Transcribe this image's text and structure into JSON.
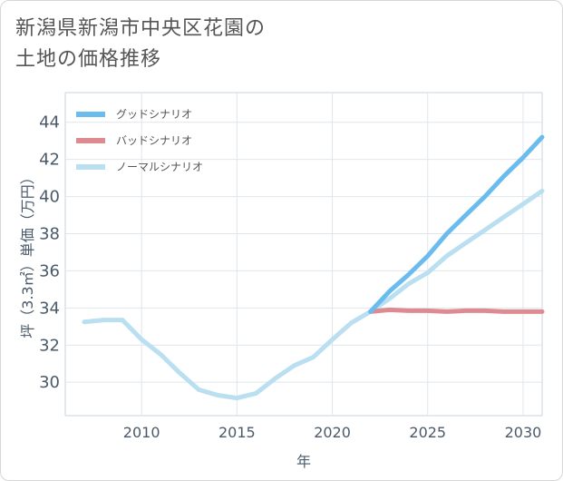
{
  "title_lines": [
    "新潟県新潟市中央区花園の",
    "土地の価格推移"
  ],
  "chart_data": {
    "type": "line",
    "title": "新潟県新潟市中央区花園の土地の価格推移",
    "xlabel": "年",
    "ylabel": "坪（3.3㎡）単価（万円）",
    "xlim": [
      2006,
      2031
    ],
    "ylim": [
      28.2,
      45.6
    ],
    "xticks": [
      2010,
      2015,
      2020,
      2025,
      2030
    ],
    "yticks": [
      30,
      32,
      34,
      36,
      38,
      40,
      42,
      44
    ],
    "grid": true,
    "legend_position": "top-left",
    "series": [
      {
        "name": "グッドシナリオ",
        "color": "#6bbcee",
        "x": [
          2022,
          2023,
          2024,
          2025,
          2026,
          2027,
          2028,
          2029,
          2030,
          2031
        ],
        "y": [
          33.8,
          34.9,
          35.8,
          36.8,
          38.0,
          39.0,
          40.0,
          41.1,
          42.1,
          43.2
        ]
      },
      {
        "name": "バッドシナリオ",
        "color": "#de8a91",
        "x": [
          2022,
          2023,
          2024,
          2025,
          2026,
          2027,
          2028,
          2029,
          2030,
          2031
        ],
        "y": [
          33.8,
          33.9,
          33.85,
          33.85,
          33.8,
          33.85,
          33.85,
          33.8,
          33.8,
          33.8
        ]
      },
      {
        "name": "ノーマルシナリオ",
        "color": "#b9dff0",
        "x": [
          2007,
          2008,
          2009,
          2010,
          2011,
          2012,
          2013,
          2014,
          2015,
          2016,
          2017,
          2018,
          2019,
          2020,
          2021,
          2022,
          2023,
          2024,
          2025,
          2026,
          2027,
          2028,
          2029,
          2030,
          2031
        ],
        "y": [
          33.25,
          33.35,
          33.35,
          32.3,
          31.5,
          30.5,
          29.6,
          29.3,
          29.15,
          29.4,
          30.2,
          30.9,
          31.35,
          32.3,
          33.2,
          33.8,
          34.5,
          35.3,
          35.9,
          36.8,
          37.5,
          38.2,
          38.9,
          39.6,
          40.3
        ]
      }
    ]
  }
}
